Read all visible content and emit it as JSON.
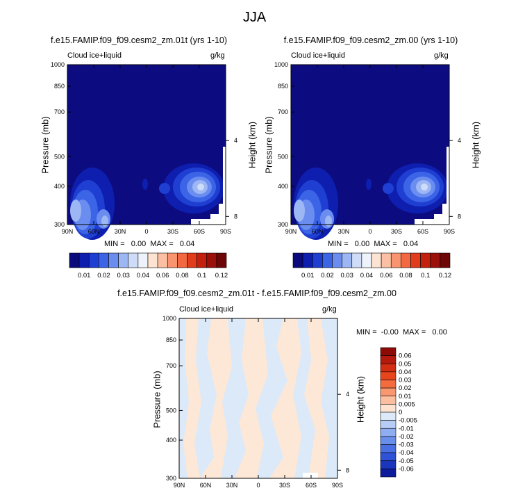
{
  "figure": {
    "title": "JJA"
  },
  "panels": [
    {
      "id": "top-left",
      "case_title": "f.e15.FAMIP.f09_f09.cesm2_zm.01t (yrs 1-10)",
      "variable": "Cloud ice+liquid",
      "units": "g/kg",
      "ylabel": "Pressure (mb)",
      "ylabel_right": "Height (km)",
      "stats": "MIN =   0.00  MAX =   0.04"
    },
    {
      "id": "top-right",
      "case_title": "f.e15.FAMIP.f09_f09.cesm2_zm.00 (yrs 1-10)",
      "variable": "Cloud ice+liquid",
      "units": "g/kg",
      "ylabel": "Pressure (mb)",
      "ylabel_right": "Height (km)",
      "stats": "MIN =   0.00  MAX =   0.04"
    },
    {
      "id": "bottom",
      "case_title": "f.e15.FAMIP.f09_f09.cesm2_zm.01t - f.e15.FAMIP.f09_f09.cesm2_zm.00",
      "variable": "Cloud ice+liquid",
      "units": "g/kg",
      "ylabel": "Pressure (mb)",
      "ylabel_right": "Height (km)",
      "stats": "MIN =  -0.00  MAX =   0.00"
    }
  ],
  "chart_data": [
    {
      "type": "heatmap",
      "title": "f.e15.FAMIP.f09_f09.cesm2_zm.01t (yrs 1-10)",
      "x_ticks": [
        "90N",
        "60N",
        "30N",
        "0",
        "30S",
        "60S",
        "90S"
      ],
      "x_values": [
        90,
        60,
        30,
        0,
        -30,
        -60,
        -90
      ],
      "y_ticks": [
        "300",
        "400",
        "500",
        "700",
        "850",
        "1000"
      ],
      "y_values": [
        300,
        400,
        500,
        700,
        850,
        1000
      ],
      "y2_ticks": [
        "8",
        "4"
      ],
      "y2_values": [
        8,
        4
      ],
      "xlim": [
        90,
        -90
      ],
      "ylim": [
        1000,
        300
      ],
      "levels": [
        0.01,
        0.02,
        0.03,
        0.04,
        0.06,
        0.08,
        0.1,
        0.12
      ],
      "min": 0.0,
      "max": 0.04
    },
    {
      "type": "heatmap",
      "title": "f.e15.FAMIP.f09_f09.cesm2_zm.00 (yrs 1-10)",
      "x_ticks": [
        "90N",
        "60N",
        "30N",
        "0",
        "30S",
        "60S",
        "90S"
      ],
      "x_values": [
        90,
        60,
        30,
        0,
        -30,
        -60,
        -90
      ],
      "y_ticks": [
        "300",
        "400",
        "500",
        "700",
        "850",
        "1000"
      ],
      "y_values": [
        300,
        400,
        500,
        700,
        850,
        1000
      ],
      "y2_ticks": [
        "8",
        "4"
      ],
      "y2_values": [
        8,
        4
      ],
      "xlim": [
        90,
        -90
      ],
      "ylim": [
        1000,
        300
      ],
      "levels": [
        0.01,
        0.02,
        0.03,
        0.04,
        0.06,
        0.08,
        0.1,
        0.12
      ],
      "min": 0.0,
      "max": 0.04
    },
    {
      "type": "heatmap",
      "title": "f.e15.FAMIP.f09_f09.cesm2_zm.01t - f.e15.FAMIP.f09_f09.cesm2_zm.00",
      "x_ticks": [
        "90N",
        "60N",
        "30N",
        "0",
        "30S",
        "60S",
        "90S"
      ],
      "x_values": [
        90,
        60,
        30,
        0,
        -30,
        -60,
        -90
      ],
      "y_ticks": [
        "300",
        "400",
        "500",
        "700",
        "850",
        "1000"
      ],
      "y_values": [
        300,
        400,
        500,
        700,
        850,
        1000
      ],
      "y2_ticks": [
        "8",
        "4"
      ],
      "y2_values": [
        8,
        4
      ],
      "xlim": [
        90,
        -90
      ],
      "ylim": [
        1000,
        300
      ],
      "levels": [
        -0.06,
        -0.05,
        -0.04,
        -0.03,
        -0.02,
        -0.01,
        -0.005,
        0,
        0.005,
        0.01,
        0.02,
        0.03,
        0.04,
        0.05,
        0.06
      ],
      "min": -0.0,
      "max": 0.0
    }
  ],
  "colorbars": {
    "abs_labels": [
      "0.01",
      "0.02",
      "0.03",
      "0.04",
      "0.06",
      "0.08",
      "0.1",
      "0.12"
    ],
    "abs_colors": [
      "#0a0a7d",
      "#0e1fb0",
      "#1f3fd2",
      "#3c64e6",
      "#6b8df0",
      "#9db6f4",
      "#cfdcf8",
      "#eef3fb",
      "#fde3d2",
      "#fbc0a3",
      "#f89570",
      "#f26840",
      "#e13c1b",
      "#c3200e",
      "#9b1008",
      "#6e0605"
    ],
    "diff_labels": [
      "0.06",
      "0.05",
      "0.04",
      "0.03",
      "0.02",
      "0.01",
      "0.005",
      "0",
      "-0.005",
      "-0.01",
      "-0.02",
      "-0.03",
      "-0.04",
      "-0.05",
      "-0.06"
    ],
    "diff_colors": [
      "#8c0b07",
      "#b3190c",
      "#d32d12",
      "#e9451d",
      "#f46b3e",
      "#f89770",
      "#fbbf9f",
      "#fde3cf",
      "#dbe9f9",
      "#b6cdf5",
      "#8eaef1",
      "#6a8eeb",
      "#4a6fe3",
      "#2f52d6",
      "#1b36bd",
      "#0d1c9a"
    ]
  },
  "colors": {
    "background": "#ffffff",
    "field_dark": "#0c0c80",
    "diff_positive": "#fde8d8",
    "diff_negative": "#dbe9f8"
  }
}
